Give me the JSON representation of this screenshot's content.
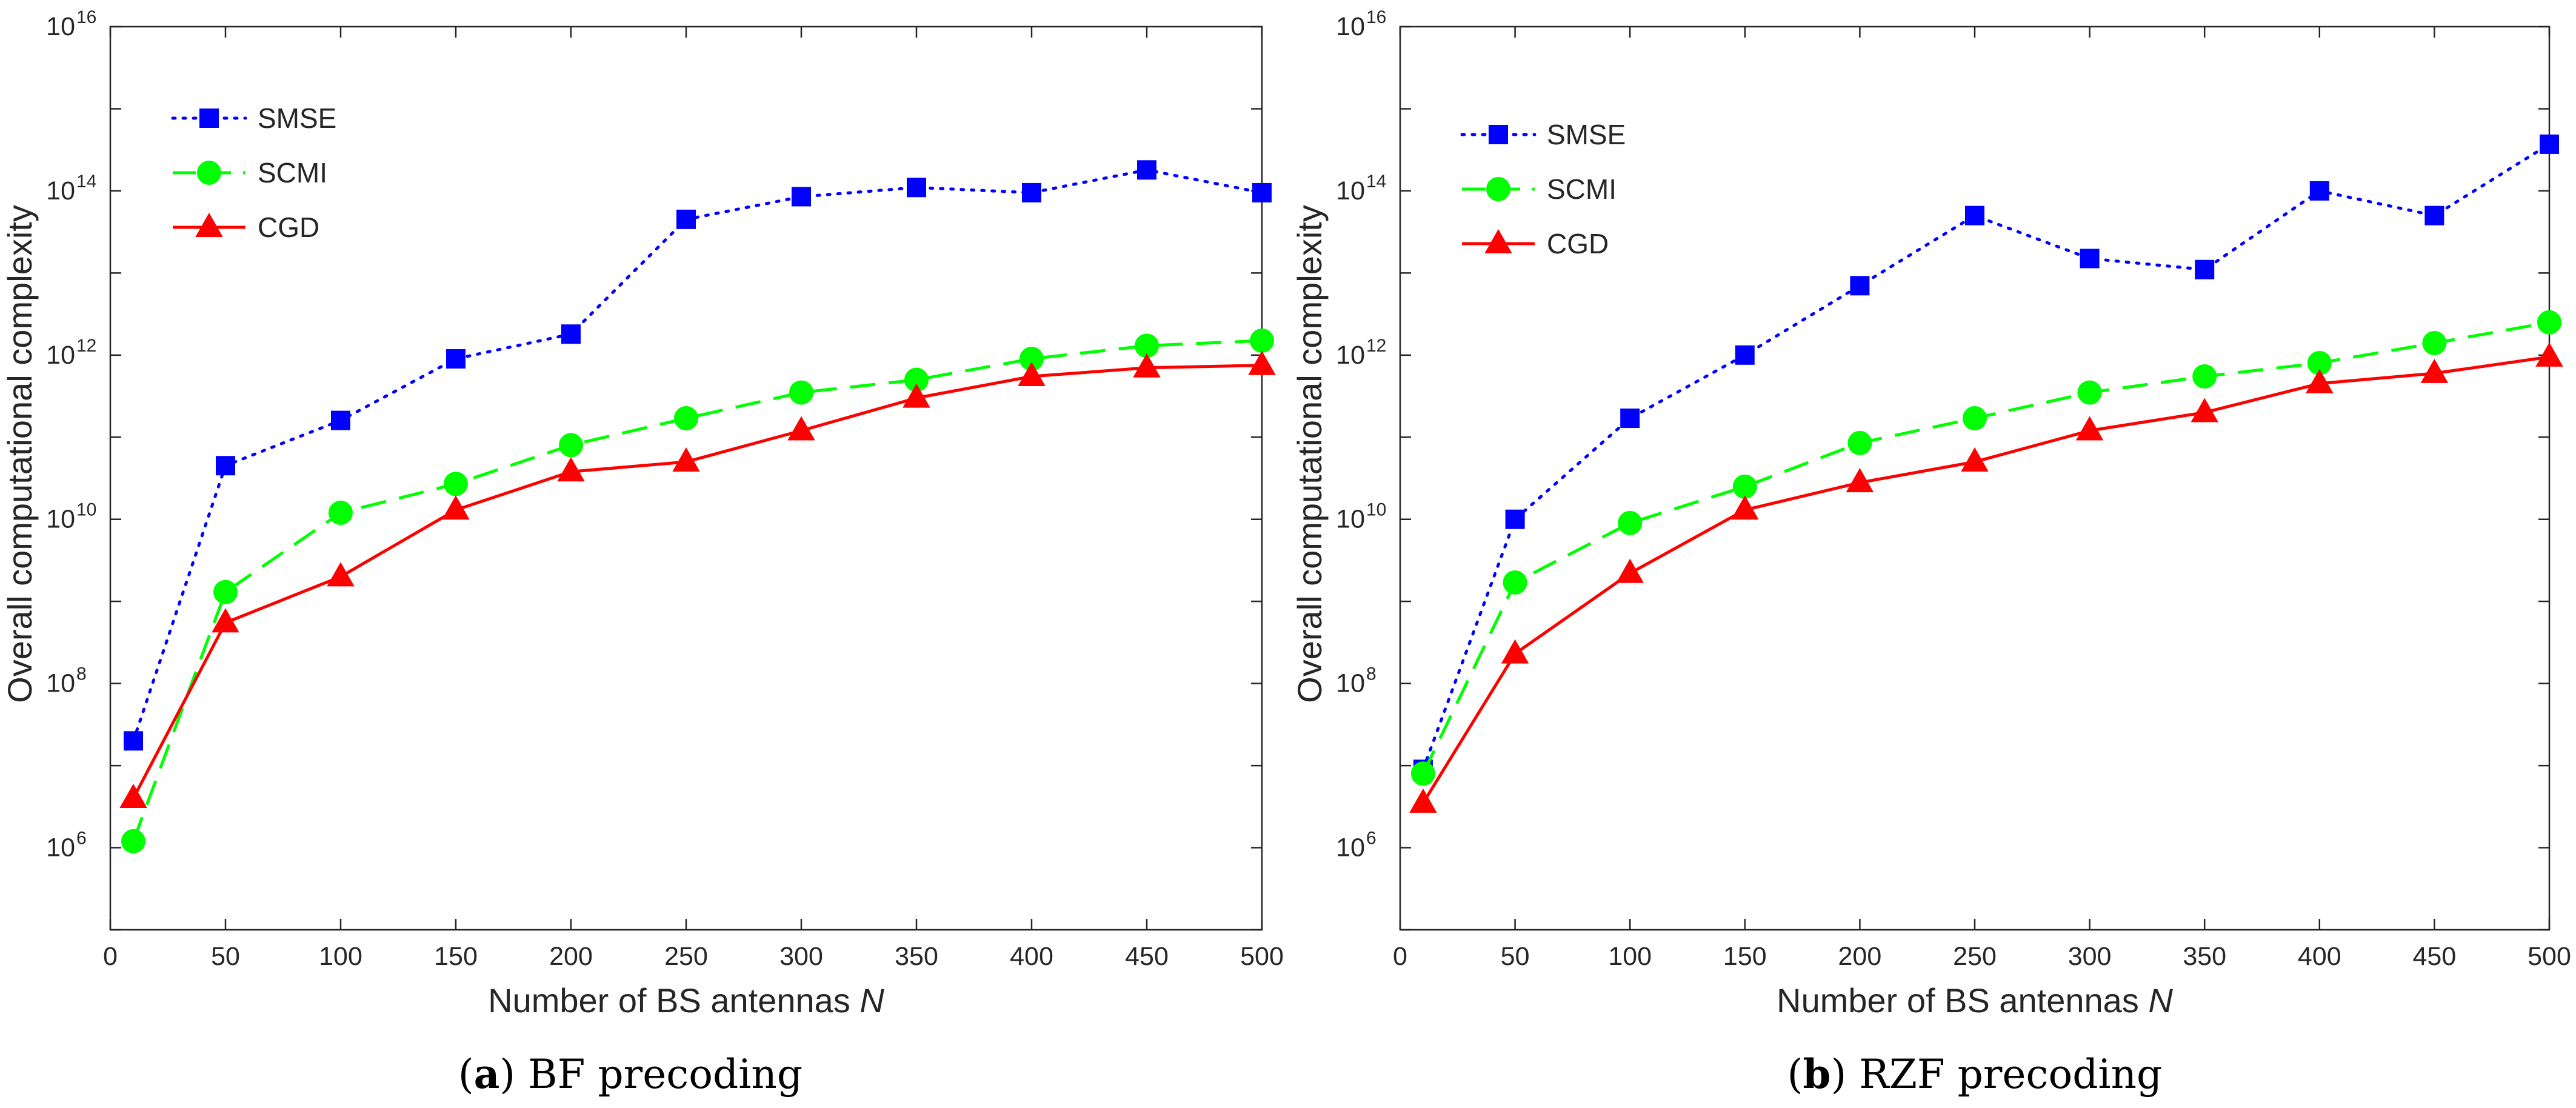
{
  "chart_data": [
    {
      "id": "a",
      "type": "line",
      "title": "",
      "y_scale": "log",
      "xlabel": "Number of BS antennas",
      "xlabel_symbol": "N",
      "ylabel": "Overall computational complexity",
      "xlim": [
        0,
        500
      ],
      "ylim_exp": [
        5,
        16
      ],
      "xticks": [
        0,
        50,
        100,
        150,
        200,
        250,
        300,
        350,
        400,
        450,
        500
      ],
      "yticks_exp": [
        6,
        8,
        10,
        12,
        14,
        16
      ],
      "x": [
        10,
        50,
        100,
        150,
        200,
        250,
        300,
        350,
        400,
        450,
        500
      ],
      "legend_position": "top-left",
      "series": [
        {
          "name": "SMSE",
          "color": "#0000ff",
          "marker": "square",
          "line": "dotted",
          "values": [
            20000000.0,
            45000000000.0,
            160000000000.0,
            900000000000.0,
            1800000000000.0,
            45000000000000.0,
            85000000000000.0,
            110000000000000.0,
            95000000000000.0,
            180000000000000.0,
            95000000000000.0
          ]
        },
        {
          "name": "SCMI",
          "color": "#00ff00",
          "marker": "circle",
          "line": "dashed",
          "values": [
            1200000.0,
            1300000000.0,
            12000000000.0,
            27000000000.0,
            80000000000.0,
            170000000000.0,
            350000000000.0,
            500000000000.0,
            900000000000.0,
            1300000000000.0,
            1500000000000.0
          ]
        },
        {
          "name": "CGD",
          "color": "#ff0000",
          "marker": "triangle",
          "line": "solid",
          "values": [
            4000000.0,
            550000000.0,
            2000000000.0,
            13000000000.0,
            38000000000.0,
            50000000000.0,
            120000000000.0,
            300000000000.0,
            550000000000.0,
            700000000000.0,
            750000000000.0
          ]
        }
      ],
      "caption_label": "(a)",
      "caption_text": "BF precoding"
    },
    {
      "id": "b",
      "type": "line",
      "title": "",
      "y_scale": "log",
      "xlabel": "Number of BS antennas",
      "xlabel_symbol": "N",
      "ylabel": "Overall computational complexity",
      "xlim": [
        0,
        500
      ],
      "ylim_exp": [
        5,
        16
      ],
      "xticks": [
        0,
        50,
        100,
        150,
        200,
        250,
        300,
        350,
        400,
        450,
        500
      ],
      "yticks_exp": [
        6,
        8,
        10,
        12,
        14,
        16
      ],
      "x": [
        10,
        50,
        100,
        150,
        200,
        250,
        300,
        350,
        400,
        450,
        500
      ],
      "legend_position": "top-left",
      "series": [
        {
          "name": "SMSE",
          "color": "#0000ff",
          "marker": "square",
          "line": "dotted",
          "values": [
            9000000.0,
            10000000000.0,
            170000000000.0,
            1000000000000.0,
            7000000000000.0,
            50000000000000.0,
            15000000000000.0,
            11000000000000.0,
            100000000000000.0,
            50000000000000.0,
            370000000000000.0
          ]
        },
        {
          "name": "SCMI",
          "color": "#00ff00",
          "marker": "circle",
          "line": "dashed",
          "values": [
            8000000.0,
            1700000000.0,
            9000000000.0,
            25000000000.0,
            85000000000.0,
            170000000000.0,
            350000000000.0,
            550000000000.0,
            800000000000.0,
            1400000000000.0,
            2500000000000.0
          ]
        },
        {
          "name": "CGD",
          "color": "#ff0000",
          "marker": "triangle",
          "line": "solid",
          "values": [
            3500000.0,
            230000000.0,
            2200000000.0,
            13000000000.0,
            28000000000.0,
            50000000000.0,
            120000000000.0,
            200000000000.0,
            450000000000.0,
            600000000000.0,
            950000000000.0
          ]
        }
      ],
      "caption_label": "(b)",
      "caption_text": "RZF precoding"
    }
  ]
}
